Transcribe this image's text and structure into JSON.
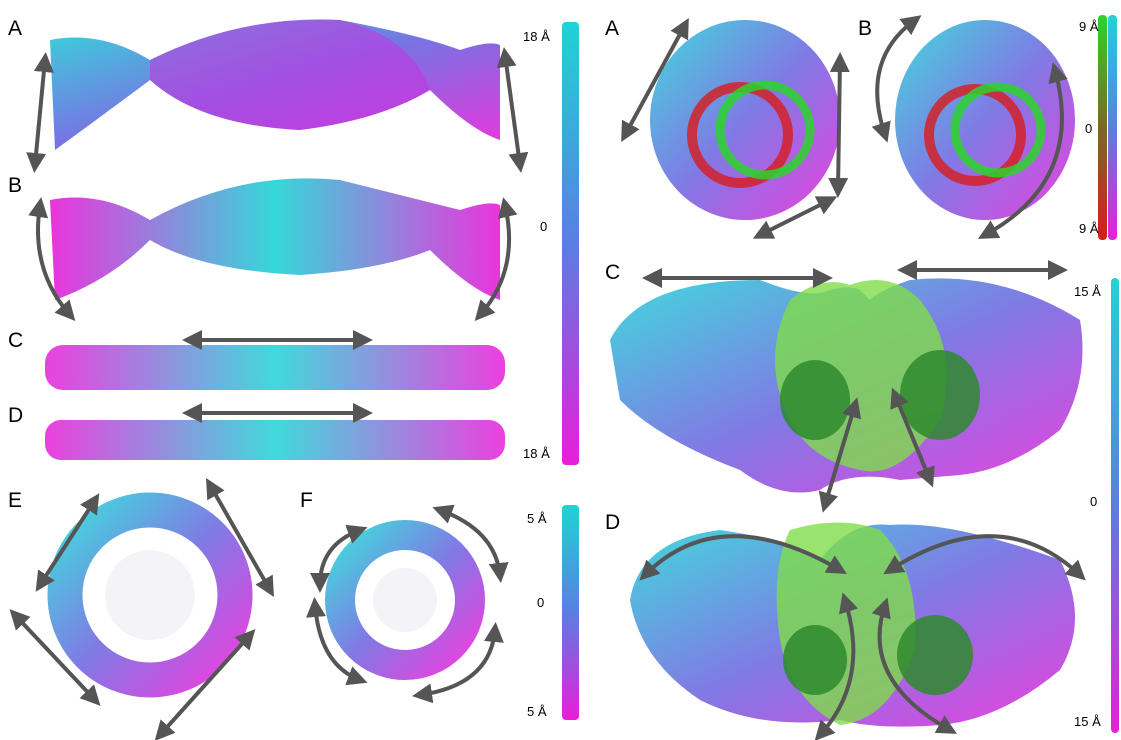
{
  "left": {
    "labels": [
      "A",
      "B",
      "C",
      "D",
      "E",
      "F"
    ],
    "scale_top": {
      "max": "18 Å",
      "mid": "0",
      "min": "18 Å"
    },
    "scale_bottom": {
      "max": "5 Å",
      "mid": "0",
      "min": "5 Å"
    }
  },
  "right": {
    "labels": [
      "A",
      "B",
      "C",
      "D"
    ],
    "scale_top": {
      "max": "9 Å",
      "mid": "0",
      "min": "9 Å"
    },
    "scale_bottom": {
      "max": "15 Å",
      "mid": "0",
      "min": "15 Å"
    }
  },
  "colors": {
    "cyan": "#1fd3d6",
    "blue": "#5a7fe0",
    "magenta": "#e81ed9",
    "green": "#2bd42b",
    "red": "#d81c1c",
    "surface_green": "#7fdc4a",
    "arrow": "#555555"
  }
}
